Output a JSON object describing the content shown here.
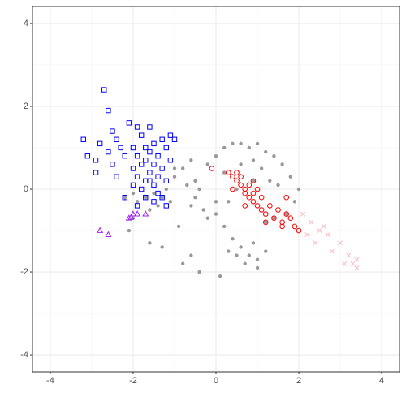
{
  "chart_data": {
    "type": "scatter",
    "xlim": [
      -4.43,
      4.43
    ],
    "ylim": [
      -4.41,
      4.41
    ],
    "xticks": [
      -4,
      -2,
      0,
      2,
      4
    ],
    "yticks": [
      -4,
      -2,
      0,
      2,
      4
    ],
    "minor_xticks": [
      -3,
      -1,
      1,
      3
    ],
    "minor_yticks": [
      -3,
      -1,
      1,
      3
    ],
    "grid": true,
    "series": [
      {
        "marker": "filled-circle",
        "color": "#999999",
        "x": [
          -2.2,
          -2.0,
          -1.9,
          -1.7,
          -1.5,
          -1.3,
          -1.2,
          -1.4,
          -1.6,
          -1.1,
          -1.0,
          -0.8,
          -0.6,
          -0.5,
          -0.4,
          -0.5,
          -0.6,
          -0.3,
          -0.2,
          0.0,
          0.2,
          0.4,
          0.6,
          0.8,
          1.0,
          1.2,
          1.4,
          1.6,
          1.8,
          2.0,
          1.9,
          1.7,
          1.4,
          1.2,
          0.2,
          0.6,
          0.9,
          1.1,
          0.5,
          0.3,
          0.0,
          0.2,
          0.4,
          0.6,
          0.8,
          1.0,
          0.9,
          0.7,
          0.5,
          0.3,
          1.2,
          1.0,
          0.1,
          -0.6,
          -0.8,
          -0.4,
          -1.3,
          -1.6,
          -2.1,
          -2.0,
          -0.2,
          -0.9,
          1.3,
          1.5,
          0.9,
          -1.0,
          -0.7,
          0.0
        ],
        "values": [
          -0.2,
          -0.1,
          -0.3,
          -0.2,
          -0.1,
          -0.2,
          0.0,
          -0.4,
          -0.5,
          -0.3,
          0.3,
          0.5,
          0.7,
          0.2,
          0.0,
          -0.2,
          -0.4,
          -0.5,
          0.6,
          0.8,
          1.0,
          1.1,
          1.1,
          1.0,
          1.1,
          0.9,
          0.8,
          0.6,
          0.3,
          0.0,
          -0.3,
          -0.6,
          -0.7,
          -0.8,
          0.4,
          0.6,
          0.7,
          0.5,
          0.0,
          -0.3,
          -0.6,
          -0.9,
          -1.2,
          -1.4,
          -1.6,
          -1.7,
          -1.3,
          -1.8,
          -1.6,
          -1.5,
          -1.5,
          -1.9,
          -2.1,
          -1.6,
          -1.8,
          -2.0,
          -1.4,
          -1.3,
          -1.0,
          -0.7,
          -0.7,
          -0.9,
          0.2,
          0.1,
          0.2,
          0.5,
          0.1,
          -0.3
        ]
      },
      {
        "marker": "open-square",
        "color": "#0000ff",
        "x": [
          -3.2,
          -3.1,
          -2.9,
          -2.7,
          -2.6,
          -2.8,
          -2.6,
          -2.5,
          -2.4,
          -2.3,
          -2.2,
          -2.1,
          -2.0,
          -2.0,
          -1.9,
          -1.9,
          -1.8,
          -1.8,
          -1.7,
          -1.7,
          -1.7,
          -1.6,
          -1.6,
          -1.6,
          -1.5,
          -1.5,
          -1.5,
          -1.4,
          -1.4,
          -1.3,
          -1.3,
          -1.2,
          -1.2,
          -1.1,
          -1.0,
          -1.1,
          -2.4,
          -2.2,
          -1.9,
          -1.7,
          -1.5,
          -1.3,
          -2.9,
          -2.0,
          -1.8,
          -1.6,
          -1.4,
          -1.2,
          -2.5,
          -1.9
        ],
        "values": [
          1.2,
          0.8,
          0.7,
          2.4,
          1.9,
          1.1,
          0.9,
          0.6,
          1.2,
          1.0,
          0.8,
          1.6,
          0.5,
          1.0,
          0.3,
          0.8,
          0.6,
          1.3,
          0.2,
          0.7,
          1.0,
          0.4,
          0.9,
          1.5,
          0.1,
          0.6,
          1.1,
          0.3,
          0.8,
          0.5,
          1.2,
          0.2,
          1.0,
          1.3,
          1.2,
          0.7,
          0.3,
          -0.2,
          -0.4,
          -0.2,
          -0.3,
          -0.2,
          0.4,
          0.1,
          0.0,
          0.2,
          -0.1,
          -0.4,
          1.4,
          1.5
        ]
      },
      {
        "marker": "open-circle",
        "color": "#ff0000",
        "x": [
          -0.1,
          0.3,
          0.4,
          0.5,
          0.5,
          0.6,
          0.6,
          0.7,
          0.7,
          0.8,
          0.8,
          0.9,
          0.9,
          1.0,
          1.0,
          1.1,
          1.1,
          1.2,
          1.3,
          1.4,
          1.5,
          1.6,
          1.7,
          1.8,
          1.6,
          1.9,
          2.0,
          0.4,
          0.7,
          1.2,
          1.7,
          0.9
        ],
        "values": [
          0.5,
          0.4,
          0.3,
          0.2,
          0.4,
          0.1,
          0.3,
          0.0,
          -0.1,
          -0.2,
          0.1,
          -0.1,
          -0.3,
          0.0,
          -0.4,
          -0.2,
          -0.5,
          -0.6,
          -0.4,
          -0.7,
          -0.5,
          -0.8,
          -0.6,
          -0.7,
          -0.9,
          -0.9,
          -1.0,
          0.0,
          -0.4,
          -0.8,
          -0.2,
          0.2
        ]
      },
      {
        "marker": "cross",
        "color": "#ffb6c1",
        "x": [
          2.1,
          2.3,
          2.5,
          2.4,
          2.7,
          2.8,
          3.0,
          3.1,
          3.2,
          3.3,
          3.4,
          3.4,
          2.6,
          2.2
        ],
        "values": [
          -0.6,
          -0.8,
          -1.0,
          -1.3,
          -1.1,
          -1.5,
          -1.3,
          -1.8,
          -1.6,
          -1.8,
          -1.7,
          -1.9,
          -0.9,
          -1.1
        ]
      },
      {
        "marker": "open-triangle",
        "color": "#a020f0",
        "x": [
          -2.8,
          -2.6,
          -2.1,
          -2.0,
          -1.9,
          -1.7,
          -2.05
        ],
        "values": [
          -1.0,
          -1.1,
          -0.7,
          -0.6,
          -0.6,
          -0.6,
          -0.68
        ]
      }
    ]
  }
}
